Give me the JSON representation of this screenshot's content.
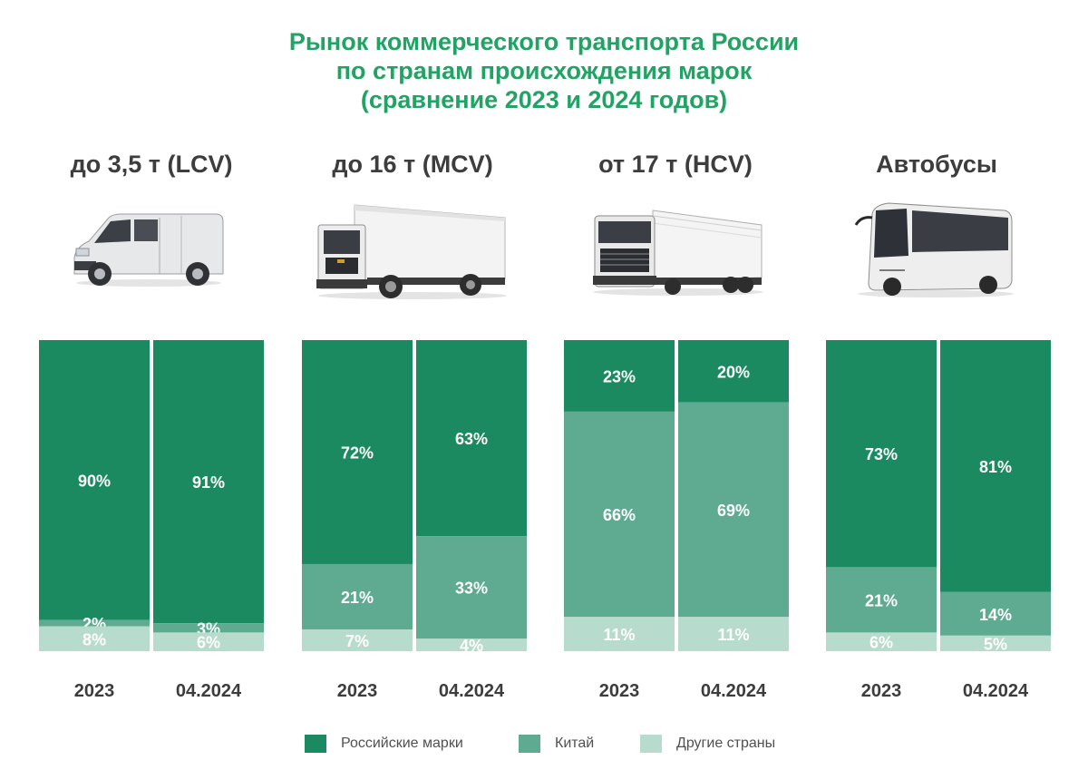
{
  "title": {
    "line1": "Рынок коммерческого транспорта России",
    "line2": "по странам происхождения марок",
    "line3": "(сравнение 2023 и 2024 годов)"
  },
  "colors": {
    "title": "#21a364",
    "russian": "#1b8a60",
    "china": "#5fab91",
    "other": "#b7dccd"
  },
  "groups": [
    {
      "title": "до 3,5 т (LCV)",
      "icon": "van-icon"
    },
    {
      "title": "до 16 т (MCV)",
      "icon": "medium-truck-icon"
    },
    {
      "title": "от 17 т (HCV)",
      "icon": "heavy-truck-icon"
    },
    {
      "title": "Автобусы",
      "icon": "bus-icon"
    }
  ],
  "legend": [
    {
      "label": "Российские марки",
      "color": "#1b8a60"
    },
    {
      "label": "Китай",
      "color": "#5fab91"
    },
    {
      "label": "Другие страны",
      "color": "#b7dccd"
    }
  ],
  "chart_data": {
    "type": "bar",
    "stacked": "100%",
    "title": "Рынок коммерческого транспорта России по странам происхождения марок (сравнение 2023 и 2024 годов)",
    "series_names": [
      "Российские марки",
      "Китай",
      "Другие страны"
    ],
    "groups": [
      {
        "name": "до 3,5 т (LCV)",
        "bars": [
          {
            "label": "2023",
            "values": [
              90,
              2,
              8
            ],
            "labels": [
              "90%",
              "2%",
              "8%"
            ]
          },
          {
            "label": "04.2024",
            "values": [
              91,
              3,
              6
            ],
            "labels": [
              "91%",
              "3%",
              "6%"
            ]
          }
        ]
      },
      {
        "name": "до 16 т (MCV)",
        "bars": [
          {
            "label": "2023",
            "values": [
              72,
              21,
              7
            ],
            "labels": [
              "72%",
              "21%",
              "7%"
            ]
          },
          {
            "label": "04.2024",
            "values": [
              63,
              33,
              4
            ],
            "labels": [
              "63%",
              "33%",
              "4%"
            ]
          }
        ]
      },
      {
        "name": "от 17 т (HCV)",
        "bars": [
          {
            "label": "2023",
            "values": [
              23,
              66,
              11
            ],
            "labels": [
              "23%",
              "66%",
              "11%"
            ]
          },
          {
            "label": "04.2024",
            "values": [
              20,
              69,
              11
            ],
            "labels": [
              "20%",
              "69%",
              "11%"
            ]
          }
        ]
      },
      {
        "name": "Автобусы",
        "bars": [
          {
            "label": "2023",
            "values": [
              73,
              21,
              6
            ],
            "labels": [
              "73%",
              "21%",
              "6%"
            ]
          },
          {
            "label": "04.2024",
            "values": [
              81,
              14,
              5
            ],
            "labels": [
              "81%",
              "14%",
              "5%"
            ]
          }
        ]
      }
    ]
  }
}
